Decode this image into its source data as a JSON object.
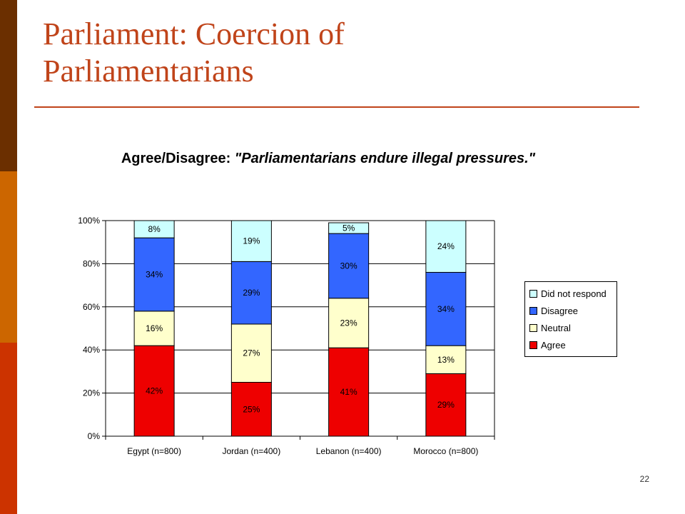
{
  "slide": {
    "title": "Parliament: Coercion of Parliamentarians",
    "page_number": "22"
  },
  "colors": {
    "sidebar": [
      "#6b2f00",
      "#cc6600",
      "#cc3300"
    ],
    "title": "#c0441a",
    "rule": "#c0441a",
    "agree": "#ee0000",
    "neutral": "#ffffcc",
    "disagree": "#3366ff",
    "did_not_respond": "#ccffff"
  },
  "chart_data": {
    "type": "bar",
    "stacked": true,
    "percent": true,
    "title_lead": "Agree/Disagree:",
    "title_quote": "\"Parliamentarians endure illegal pressures.\"",
    "categories": [
      "Egypt (n=800)",
      "Jordan (n=400)",
      "Lebanon (n=400)",
      "Morocco (n=800)"
    ],
    "series": [
      {
        "name": "Agree",
        "values": [
          42,
          25,
          41,
          29
        ],
        "labels": [
          "42%",
          "25%",
          "41%",
          "29%"
        ],
        "color": "#ee0000"
      },
      {
        "name": "Neutral",
        "values": [
          16,
          27,
          23,
          13
        ],
        "labels": [
          "16%",
          "27%",
          "23%",
          "13%"
        ],
        "color": "#ffffcc"
      },
      {
        "name": "Disagree",
        "values": [
          34,
          29,
          30,
          34
        ],
        "labels": [
          "34%",
          "29%",
          "30%",
          "34%"
        ],
        "color": "#3366ff"
      },
      {
        "name": "Did not respond",
        "values": [
          8,
          19,
          5,
          24
        ],
        "labels": [
          "8%",
          "19%",
          "5%",
          "24%"
        ],
        "color": "#ccffff"
      }
    ],
    "legend_order": [
      "Did not respond",
      "Disagree",
      "Neutral",
      "Agree"
    ],
    "y_ticks": [
      "0%",
      "20%",
      "40%",
      "60%",
      "80%",
      "100%"
    ],
    "ylim": [
      0,
      100
    ],
    "grid": true,
    "legend_position": "right"
  }
}
